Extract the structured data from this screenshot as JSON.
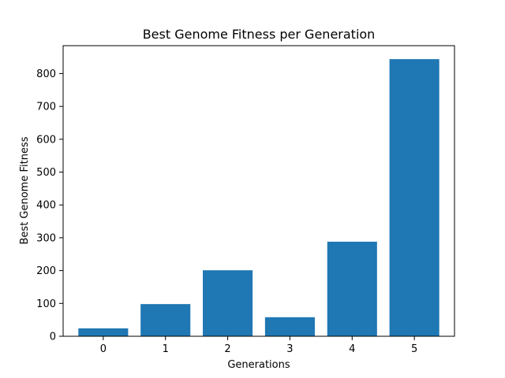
{
  "chart_data": {
    "type": "bar",
    "title": "Best Genome Fitness per Generation",
    "xlabel": "Generations",
    "ylabel": "Best Genome Fitness",
    "categories": [
      "0",
      "1",
      "2",
      "3",
      "4",
      "5"
    ],
    "values": [
      24,
      98,
      201,
      58,
      288,
      844
    ],
    "ylim": [
      0,
      885
    ],
    "yticks": [
      0,
      100,
      200,
      300,
      400,
      500,
      600,
      700,
      800
    ],
    "grid": false,
    "bar_color": "#1f77b4"
  }
}
